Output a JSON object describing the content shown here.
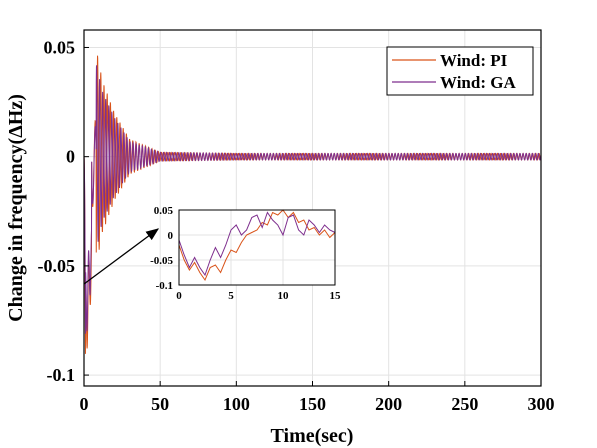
{
  "chart_data": {
    "type": "line",
    "xlabel": "Time(sec)",
    "ylabel": "Change in frequency(ΔHz)",
    "xlim": [
      0,
      300
    ],
    "ylim": [
      -0.105,
      0.058
    ],
    "xticks": [
      "0",
      "50",
      "100",
      "150",
      "200",
      "250",
      "300"
    ],
    "yticks": [
      "0.05",
      "0",
      "-0.05",
      "-0.1"
    ],
    "grid": true,
    "legend_placement": "top-right",
    "series": [
      {
        "name": "Wind: PI",
        "color": "#d95319",
        "amplitude_envelope": [
          [
            0,
            0
          ],
          [
            1,
            -0.098
          ],
          [
            5,
            -0.06
          ],
          [
            8,
            0.05
          ],
          [
            12,
            0.035
          ],
          [
            20,
            0.02
          ],
          [
            30,
            0.008
          ],
          [
            50,
            0.002
          ],
          [
            100,
            0.0015
          ],
          [
            300,
            0.0015
          ]
        ]
      },
      {
        "name": "Wind: GA",
        "color": "#7e2f8e",
        "amplitude_envelope": [
          [
            0,
            0
          ],
          [
            1,
            -0.088
          ],
          [
            5,
            -0.055
          ],
          [
            8,
            0.043
          ],
          [
            12,
            0.03
          ],
          [
            20,
            0.018
          ],
          [
            30,
            0.007
          ],
          [
            50,
            0.002
          ],
          [
            100,
            0.0015
          ],
          [
            300,
            0.0015
          ]
        ]
      }
    ],
    "inset": {
      "xlim": [
        0,
        15
      ],
      "ylim": [
        -0.1,
        0.05
      ],
      "xticks": [
        "0",
        "5",
        "10",
        "15"
      ],
      "yticks": [
        "0.05",
        "0",
        "-0.05",
        "-0.1"
      ],
      "series": [
        {
          "name": "Wind: PI",
          "color": "#d95319",
          "points": [
            [
              0,
              -0.02
            ],
            [
              0.5,
              -0.05
            ],
            [
              1,
              -0.07
            ],
            [
              1.5,
              -0.055
            ],
            [
              2,
              -0.075
            ],
            [
              2.5,
              -0.09
            ],
            [
              3,
              -0.065
            ],
            [
              3.5,
              -0.06
            ],
            [
              4,
              -0.075
            ],
            [
              4.5,
              -0.05
            ],
            [
              5,
              -0.03
            ],
            [
              5.5,
              -0.035
            ],
            [
              6,
              -0.015
            ],
            [
              6.5,
              0.0
            ],
            [
              7,
              0.005
            ],
            [
              7.5,
              0.01
            ],
            [
              8,
              0.025
            ],
            [
              8.5,
              0.02
            ],
            [
              9,
              0.045
            ],
            [
              9.5,
              0.04
            ],
            [
              10,
              0.05
            ],
            [
              10.5,
              0.035
            ],
            [
              11,
              0.045
            ],
            [
              11.5,
              0.025
            ],
            [
              12,
              0.03
            ],
            [
              12.5,
              0.01
            ],
            [
              13,
              0.015
            ],
            [
              13.5,
              0.0
            ],
            [
              14,
              0.01
            ],
            [
              14.5,
              -0.005
            ],
            [
              15,
              0.005
            ]
          ]
        },
        {
          "name": "Wind: GA",
          "color": "#7e2f8e",
          "points": [
            [
              0,
              -0.01
            ],
            [
              0.5,
              -0.04
            ],
            [
              1,
              -0.065
            ],
            [
              1.5,
              -0.045
            ],
            [
              2,
              -0.065
            ],
            [
              2.5,
              -0.08
            ],
            [
              3,
              -0.05
            ],
            [
              3.5,
              -0.025
            ],
            [
              4,
              -0.045
            ],
            [
              4.5,
              -0.02
            ],
            [
              5,
              0.01
            ],
            [
              5.5,
              0.02
            ],
            [
              6,
              0.0
            ],
            [
              6.5,
              0.01
            ],
            [
              7,
              0.035
            ],
            [
              7.5,
              0.04
            ],
            [
              8,
              0.015
            ],
            [
              8.5,
              0.045
            ],
            [
              9,
              0.03
            ],
            [
              9.5,
              0.02
            ],
            [
              10,
              0.0
            ],
            [
              10.5,
              0.035
            ],
            [
              11,
              0.04
            ],
            [
              11.5,
              0.01
            ],
            [
              12,
              0.0
            ],
            [
              12.5,
              0.03
            ],
            [
              13,
              0.02
            ],
            [
              13.5,
              0.005
            ],
            [
              14,
              0.02
            ],
            [
              14.5,
              0.01
            ],
            [
              15,
              0.005
            ]
          ]
        }
      ]
    }
  }
}
